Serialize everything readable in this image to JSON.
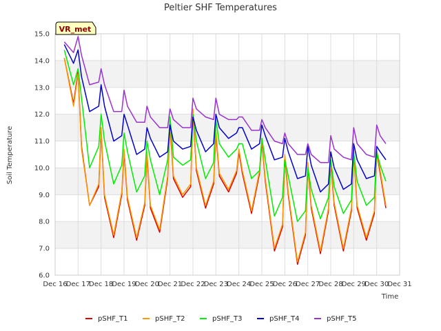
{
  "chart_data": {
    "type": "line",
    "title": "Peltier SHF Temperatures",
    "xlabel": "Time",
    "ylabel": "Soil Temperature",
    "badge": "VR_met",
    "x_range": [
      16,
      31
    ],
    "ylim": [
      6.0,
      15.0
    ],
    "y_ticks": [
      6.0,
      7.0,
      8.0,
      9.0,
      10.0,
      11.0,
      12.0,
      13.0,
      14.0,
      15.0
    ],
    "x_ticks": [
      "Dec 16",
      "Dec 17",
      "Dec 18",
      "Dec 19",
      "Dec 20",
      "Dec 21",
      "Dec 22",
      "Dec 23",
      "Dec 24",
      "Dec 25",
      "Dec 26",
      "Dec 27",
      "Dec 28",
      "Dec 29",
      "Dec 30",
      "Dec 31"
    ],
    "grid": true,
    "legend_position": "bottom",
    "x": [
      16.4,
      16.8,
      17.0,
      17.15,
      17.5,
      17.9,
      18.0,
      18.15,
      18.55,
      18.9,
      19.0,
      19.15,
      19.55,
      19.9,
      20.0,
      20.15,
      20.55,
      20.9,
      21.0,
      21.15,
      21.55,
      21.9,
      22.0,
      22.15,
      22.55,
      22.9,
      23.0,
      23.15,
      23.55,
      23.9,
      24.0,
      24.15,
      24.55,
      24.9,
      25.0,
      25.15,
      25.55,
      25.9,
      26.0,
      26.15,
      26.55,
      26.9,
      27.0,
      27.15,
      27.55,
      27.9,
      28.0,
      28.15,
      28.55,
      28.9,
      29.0,
      29.15,
      29.55,
      29.9,
      30.0,
      30.15,
      30.4
    ],
    "series": [
      {
        "name": "pSHF_T1",
        "color": "#dd0000",
        "values": [
          14.1,
          12.4,
          13.6,
          10.8,
          8.6,
          9.3,
          11.4,
          8.9,
          7.4,
          9.0,
          10.6,
          8.8,
          7.3,
          8.6,
          10.5,
          8.5,
          7.6,
          9.6,
          11.6,
          9.6,
          8.9,
          9.3,
          12.1,
          9.9,
          8.5,
          9.4,
          11.3,
          9.7,
          9.1,
          9.8,
          10.6,
          9.8,
          8.3,
          9.8,
          11.0,
          9.5,
          6.9,
          7.8,
          10.4,
          9.0,
          6.4,
          7.5,
          10.1,
          8.5,
          6.8,
          8.4,
          10.2,
          8.6,
          6.9,
          8.4,
          10.6,
          8.5,
          7.3,
          8.3,
          10.6,
          9.8,
          8.5
        ]
      },
      {
        "name": "pSHF_T2",
        "color": "#ff9900",
        "values": [
          14.1,
          12.3,
          13.5,
          10.7,
          8.6,
          9.4,
          11.5,
          9.0,
          7.5,
          9.1,
          10.7,
          8.9,
          7.4,
          8.7,
          10.6,
          8.6,
          7.7,
          9.7,
          11.7,
          9.7,
          9.0,
          9.4,
          12.2,
          10.0,
          8.6,
          9.5,
          11.4,
          9.8,
          9.2,
          9.9,
          10.7,
          9.9,
          8.4,
          9.9,
          11.1,
          9.6,
          7.0,
          7.9,
          10.5,
          9.1,
          6.5,
          7.6,
          10.2,
          8.6,
          6.9,
          8.5,
          10.3,
          8.7,
          7.0,
          8.5,
          10.7,
          8.6,
          7.4,
          8.4,
          10.7,
          9.9,
          8.6
        ]
      },
      {
        "name": "pSHF_T3",
        "color": "#00ee00",
        "values": [
          14.4,
          13.1,
          13.7,
          12.6,
          10.0,
          10.8,
          12.0,
          11.0,
          9.4,
          10.1,
          11.3,
          10.6,
          9.1,
          9.7,
          11.0,
          10.3,
          9.0,
          10.3,
          11.9,
          10.4,
          10.1,
          10.3,
          12.0,
          11.0,
          9.6,
          10.2,
          11.8,
          10.9,
          10.4,
          10.7,
          10.9,
          10.9,
          9.6,
          9.9,
          11.1,
          10.3,
          8.2,
          8.9,
          10.3,
          9.7,
          8.0,
          8.4,
          10.0,
          9.2,
          8.1,
          8.9,
          10.3,
          9.3,
          8.3,
          8.8,
          10.6,
          9.5,
          8.6,
          8.9,
          10.6,
          10.1,
          9.5
        ]
      },
      {
        "name": "pSHF_T4",
        "color": "#0000cc",
        "values": [
          14.6,
          13.9,
          14.4,
          13.4,
          12.1,
          12.3,
          13.1,
          12.3,
          11.0,
          11.2,
          12.0,
          11.6,
          10.5,
          10.7,
          11.5,
          11.1,
          10.4,
          10.6,
          11.6,
          11.0,
          10.7,
          10.8,
          11.9,
          11.4,
          10.6,
          10.9,
          12.0,
          11.5,
          11.1,
          11.3,
          11.5,
          11.5,
          10.7,
          10.9,
          11.6,
          11.2,
          10.3,
          10.4,
          11.1,
          10.6,
          9.6,
          9.7,
          10.8,
          10.1,
          9.1,
          9.4,
          10.6,
          10.0,
          9.2,
          9.4,
          10.9,
          10.3,
          9.6,
          9.7,
          10.8,
          10.6,
          10.3
        ]
      },
      {
        "name": "pSHF_T5",
        "color": "#9933cc",
        "values": [
          14.7,
          14.3,
          14.9,
          14.2,
          13.1,
          13.2,
          13.7,
          13.1,
          12.1,
          12.1,
          12.9,
          12.3,
          11.7,
          11.7,
          12.3,
          11.9,
          11.5,
          11.5,
          12.2,
          11.8,
          11.5,
          11.5,
          12.6,
          12.2,
          11.9,
          11.8,
          12.6,
          12.0,
          11.8,
          11.8,
          11.9,
          11.9,
          11.4,
          11.4,
          11.8,
          11.5,
          11.0,
          10.9,
          11.3,
          10.9,
          10.5,
          10.5,
          10.9,
          10.5,
          10.2,
          10.2,
          11.2,
          10.7,
          10.4,
          10.3,
          11.5,
          10.9,
          10.5,
          10.4,
          11.6,
          11.2,
          10.9
        ]
      }
    ]
  }
}
